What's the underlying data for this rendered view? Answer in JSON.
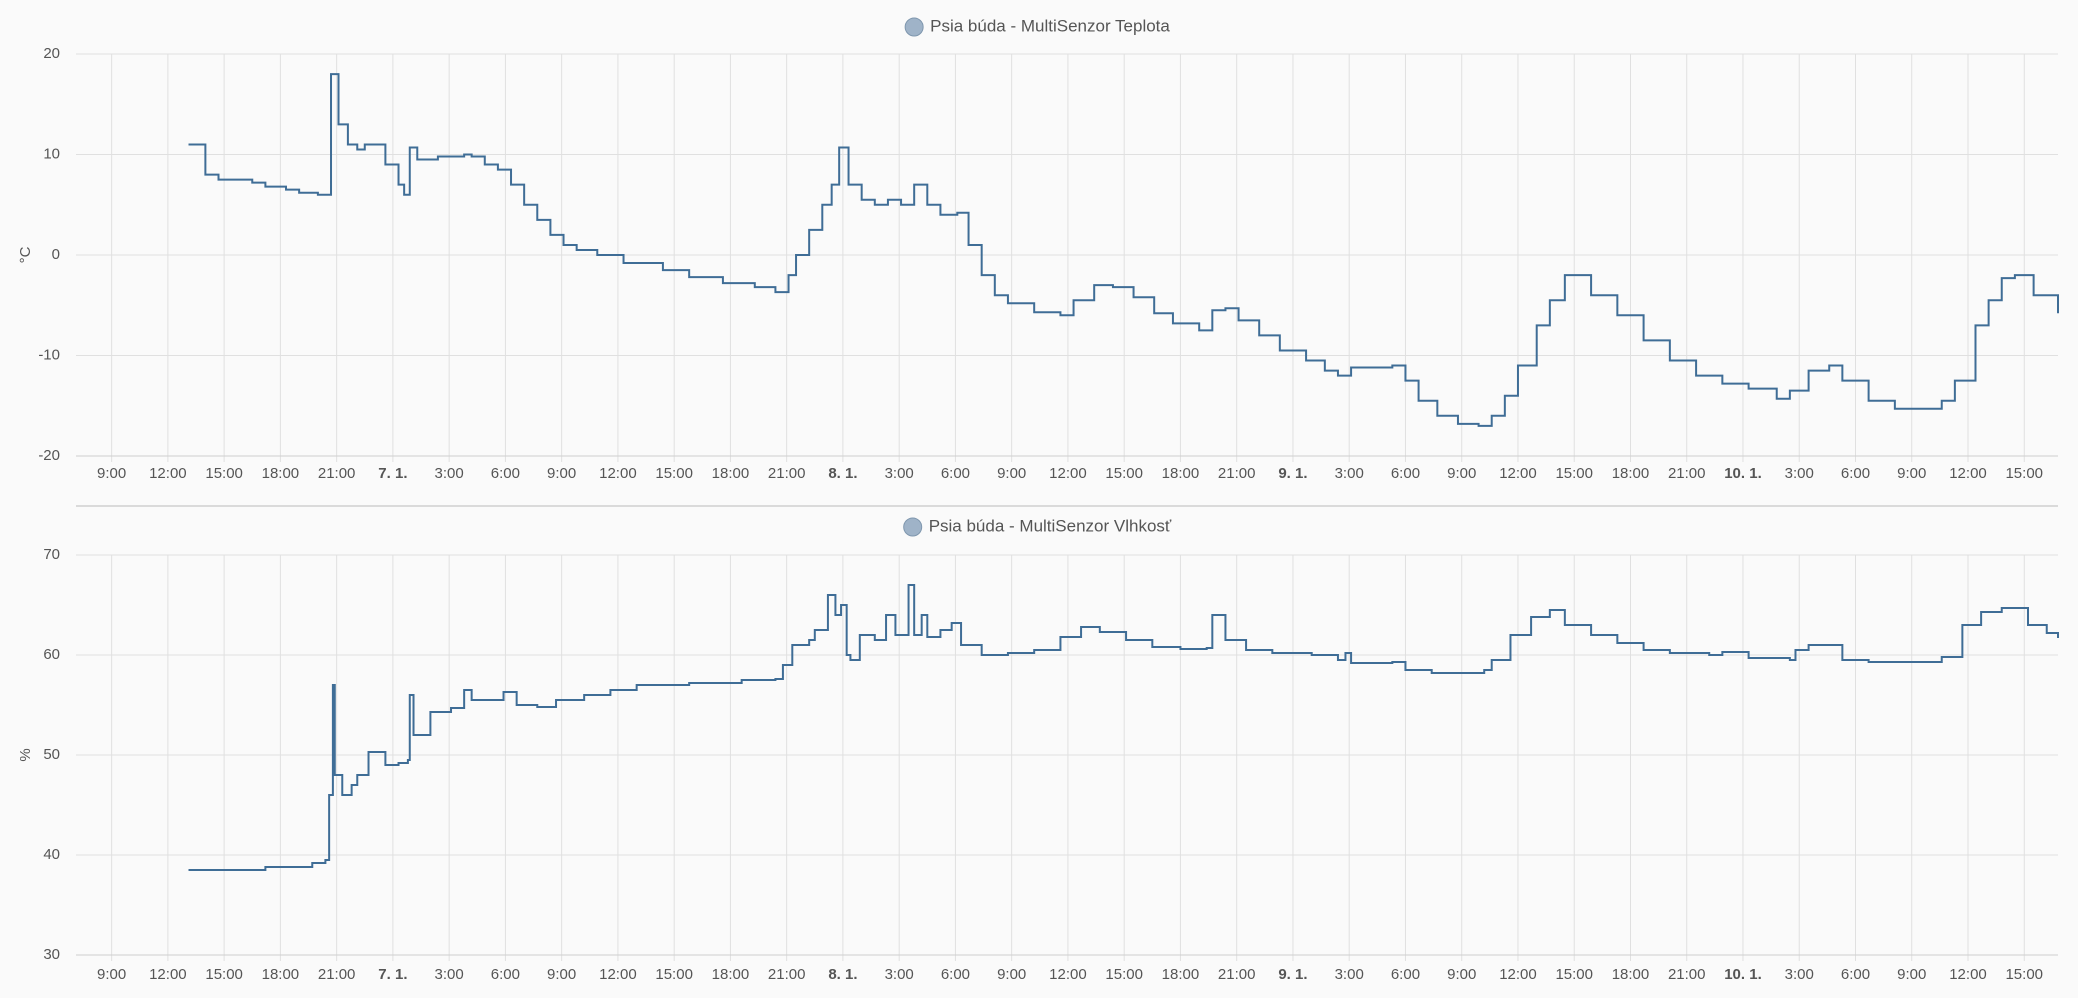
{
  "chart_data": [
    {
      "type": "line",
      "title": "Psia búda - MultiSenzor Teplota",
      "ylabel": "°C",
      "step": true,
      "grid": true,
      "xlim": [
        7.1,
        112.8
      ],
      "ylim": [
        -20,
        20
      ],
      "yticks": [
        -20,
        -10,
        0,
        10,
        20
      ],
      "xticks": [
        {
          "value": 9,
          "label": "9:00"
        },
        {
          "value": 12,
          "label": "12:00"
        },
        {
          "value": 15,
          "label": "15:00"
        },
        {
          "value": 18,
          "label": "18:00"
        },
        {
          "value": 21,
          "label": "21:00"
        },
        {
          "value": 24,
          "label": "7. 1."
        },
        {
          "value": 27,
          "label": "3:00"
        },
        {
          "value": 30,
          "label": "6:00"
        },
        {
          "value": 33,
          "label": "9:00"
        },
        {
          "value": 36,
          "label": "12:00"
        },
        {
          "value": 39,
          "label": "15:00"
        },
        {
          "value": 42,
          "label": "18:00"
        },
        {
          "value": 45,
          "label": "21:00"
        },
        {
          "value": 48,
          "label": "8. 1."
        },
        {
          "value": 51,
          "label": "3:00"
        },
        {
          "value": 54,
          "label": "6:00"
        },
        {
          "value": 57,
          "label": "9:00"
        },
        {
          "value": 60,
          "label": "12:00"
        },
        {
          "value": 63,
          "label": "15:00"
        },
        {
          "value": 66,
          "label": "18:00"
        },
        {
          "value": 69,
          "label": "21:00"
        },
        {
          "value": 72,
          "label": "9. 1."
        },
        {
          "value": 75,
          "label": "3:00"
        },
        {
          "value": 78,
          "label": "6:00"
        },
        {
          "value": 81,
          "label": "9:00"
        },
        {
          "value": 84,
          "label": "12:00"
        },
        {
          "value": 87,
          "label": "15:00"
        },
        {
          "value": 90,
          "label": "18:00"
        },
        {
          "value": 93,
          "label": "21:00"
        },
        {
          "value": 96,
          "label": "10. 1."
        },
        {
          "value": 99,
          "label": "3:00"
        },
        {
          "value": 102,
          "label": "6:00"
        },
        {
          "value": 105,
          "label": "9:00"
        },
        {
          "value": 108,
          "label": "12:00"
        },
        {
          "value": 111,
          "label": "15:00"
        }
      ],
      "series": [
        {
          "color": "#3f6d96",
          "x": [
            13.1,
            14.0,
            14.7,
            16.5,
            17.2,
            18.3,
            19.0,
            20.0,
            20.4,
            20.7,
            21.1,
            21.6,
            22.1,
            22.5,
            23.2,
            23.6,
            24.3,
            24.6,
            24.9,
            25.3,
            25.7,
            26.4,
            27.8,
            28.2,
            28.9,
            29.6,
            30.3,
            31.0,
            31.7,
            32.4,
            33.1,
            33.8,
            34.9,
            36.3,
            38.4,
            39.8,
            41.6,
            43.3,
            44.4,
            45.1,
            45.5,
            46.2,
            46.9,
            47.4,
            47.8,
            48.3,
            49.0,
            49.7,
            50.4,
            51.1,
            51.8,
            52.5,
            53.2,
            54.1,
            54.7,
            55.4,
            56.1,
            56.8,
            58.2,
            59.6,
            60.3,
            61.4,
            62.4,
            63.5,
            64.6,
            65.6,
            67.0,
            67.7,
            68.4,
            69.1,
            70.2,
            71.3,
            72.7,
            73.7,
            74.4,
            75.1,
            77.3,
            78.0,
            78.7,
            79.7,
            80.8,
            81.9,
            82.6,
            83.3,
            84.0,
            85.0,
            85.7,
            86.5,
            86.8,
            87.9,
            89.3,
            90.7,
            92.1,
            93.5,
            94.9,
            96.3,
            97.8,
            98.5,
            99.5,
            100.6,
            101.3,
            102.7,
            104.1,
            105.5,
            106.6,
            107.3,
            108.4,
            109.1,
            109.8,
            110.5,
            111.5,
            112.8
          ],
          "values": [
            11,
            8,
            7.5,
            7.2,
            6.8,
            6.5,
            6.2,
            6,
            6,
            18,
            13,
            11,
            10.5,
            11,
            11,
            9,
            7,
            6,
            10.7,
            9.5,
            9.5,
            9.8,
            10,
            9.8,
            9,
            8.5,
            7,
            5,
            3.5,
            2,
            1,
            0.5,
            0,
            -0.8,
            -1.5,
            -2.2,
            -2.8,
            -3.2,
            -3.7,
            -2,
            0,
            2.5,
            5,
            7,
            10.7,
            7,
            5.5,
            5,
            5.5,
            5,
            7,
            5,
            4,
            4.2,
            1,
            -2,
            -4,
            -4.8,
            -5.7,
            -6,
            -4.5,
            -3,
            -3.2,
            -4.2,
            -5.8,
            -6.8,
            -7.5,
            -5.5,
            -5.3,
            -6.5,
            -8,
            -9.5,
            -10.5,
            -11.5,
            -12,
            -11.2,
            -11,
            -12.5,
            -14.5,
            -16,
            -16.8,
            -17,
            -16,
            -14,
            -11,
            -7,
            -4.5,
            -2,
            -2,
            -4,
            -6,
            -8.5,
            -10.5,
            -12,
            -12.8,
            -13.3,
            -14.3,
            -13.5,
            -11.5,
            -11,
            -12.5,
            -14.5,
            -15.3,
            -15.3,
            -14.5,
            -12.5,
            -7,
            -4.5,
            -2.3,
            -2,
            -4,
            -5.8
          ]
        }
      ]
    },
    {
      "type": "line",
      "title": "Psia búda - MultiSenzor Vlhkosť",
      "ylabel": "%",
      "step": true,
      "grid": true,
      "xlim": [
        7.1,
        112.8
      ],
      "ylim": [
        30,
        70
      ],
      "yticks": [
        30,
        40,
        50,
        60,
        70
      ],
      "xticks": [
        {
          "value": 9,
          "label": "9:00"
        },
        {
          "value": 12,
          "label": "12:00"
        },
        {
          "value": 15,
          "label": "15:00"
        },
        {
          "value": 18,
          "label": "18:00"
        },
        {
          "value": 21,
          "label": "21:00"
        },
        {
          "value": 24,
          "label": "7. 1."
        },
        {
          "value": 27,
          "label": "3:00"
        },
        {
          "value": 30,
          "label": "6:00"
        },
        {
          "value": 33,
          "label": "9:00"
        },
        {
          "value": 36,
          "label": "12:00"
        },
        {
          "value": 39,
          "label": "15:00"
        },
        {
          "value": 42,
          "label": "18:00"
        },
        {
          "value": 45,
          "label": "21:00"
        },
        {
          "value": 48,
          "label": "8. 1."
        },
        {
          "value": 51,
          "label": "3:00"
        },
        {
          "value": 54,
          "label": "6:00"
        },
        {
          "value": 57,
          "label": "9:00"
        },
        {
          "value": 60,
          "label": "12:00"
        },
        {
          "value": 63,
          "label": "15:00"
        },
        {
          "value": 66,
          "label": "18:00"
        },
        {
          "value": 69,
          "label": "21:00"
        },
        {
          "value": 72,
          "label": "9. 1."
        },
        {
          "value": 75,
          "label": "3:00"
        },
        {
          "value": 78,
          "label": "6:00"
        },
        {
          "value": 81,
          "label": "9:00"
        },
        {
          "value": 84,
          "label": "12:00"
        },
        {
          "value": 87,
          "label": "15:00"
        },
        {
          "value": 90,
          "label": "18:00"
        },
        {
          "value": 93,
          "label": "21:00"
        },
        {
          "value": 96,
          "label": "10. 1."
        },
        {
          "value": 99,
          "label": "3:00"
        },
        {
          "value": 102,
          "label": "6:00"
        },
        {
          "value": 105,
          "label": "9:00"
        },
        {
          "value": 108,
          "label": "12:00"
        },
        {
          "value": 111,
          "label": "15:00"
        }
      ],
      "series": [
        {
          "color": "#3f6d96",
          "x": [
            13.1,
            14.4,
            17.2,
            19.7,
            20.4,
            20.6,
            20.8,
            20.9,
            21.3,
            21.8,
            22.1,
            22.7,
            23.2,
            23.6,
            24.3,
            24.8,
            24.9,
            25.1,
            26.0,
            27.1,
            27.8,
            28.2,
            28.9,
            29.9,
            30.6,
            31.7,
            32.7,
            34.2,
            35.6,
            37.0,
            39.8,
            42.6,
            44.4,
            44.8,
            45.3,
            46.2,
            46.5,
            47.2,
            47.6,
            47.9,
            48.2,
            48.4,
            48.9,
            49.7,
            50.3,
            50.8,
            51.5,
            51.8,
            52.2,
            52.5,
            53.2,
            53.8,
            54.3,
            55.4,
            56.8,
            58.2,
            59.6,
            60.7,
            61.7,
            63.1,
            64.5,
            66.0,
            67.4,
            67.7,
            68.4,
            69.5,
            70.9,
            73.0,
            74.4,
            74.8,
            75.1,
            77.3,
            78.0,
            79.4,
            80.8,
            82.2,
            82.6,
            83.6,
            84.7,
            85.7,
            86.5,
            87.9,
            89.3,
            90.7,
            92.1,
            94.2,
            94.9,
            96.3,
            98.5,
            98.8,
            99.5,
            100.9,
            101.3,
            102.7,
            104.8,
            106.6,
            107.7,
            108.7,
            109.8,
            110.8,
            111.2,
            112.2,
            112.8
          ],
          "values": [
            38.5,
            38.5,
            38.8,
            39.2,
            39.5,
            46,
            57,
            48,
            46,
            47,
            48,
            50.3,
            50.3,
            49,
            49.2,
            49.5,
            56,
            52,
            54.3,
            54.7,
            56.5,
            55.5,
            55.5,
            56.3,
            55,
            54.8,
            55.5,
            56,
            56.5,
            57,
            57.2,
            57.5,
            57.6,
            59,
            61,
            61.5,
            62.5,
            66,
            64,
            65,
            60,
            59.5,
            62,
            61.5,
            64,
            62,
            67,
            62,
            64,
            61.8,
            62.5,
            63.2,
            61,
            60,
            60.2,
            60.5,
            61.8,
            62.8,
            62.3,
            61.5,
            60.8,
            60.6,
            60.7,
            64,
            61.5,
            60.5,
            60.2,
            60,
            59.5,
            60.2,
            59.2,
            59.3,
            58.5,
            58.2,
            58.2,
            58.5,
            59.5,
            62,
            63.8,
            64.5,
            63,
            62,
            61.2,
            60.5,
            60.2,
            60,
            60.3,
            59.7,
            59.5,
            60.5,
            61,
            61,
            59.5,
            59.3,
            59.3,
            59.8,
            63,
            64.3,
            64.7,
            64.7,
            63,
            62.2,
            61.7
          ]
        }
      ]
    }
  ]
}
